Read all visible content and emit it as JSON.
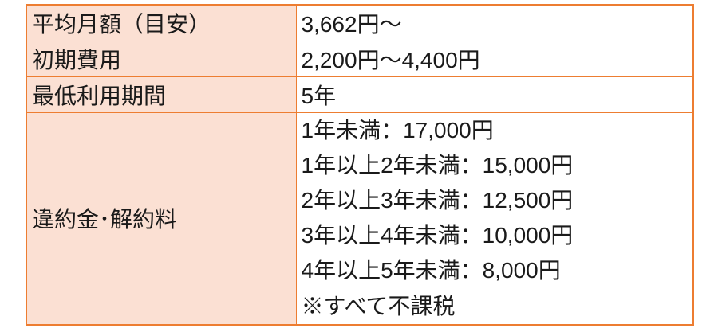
{
  "colors": {
    "border": "#ed7d31",
    "label_bg": "#fbe0d3",
    "text": "#1a1a1a"
  },
  "table": {
    "rows": [
      {
        "label": "平均月額（目安）",
        "value": "3,662円～"
      },
      {
        "label": "初期費用",
        "value": "2,200円～4,400円"
      },
      {
        "label": "最低利用期間",
        "value": "5年"
      },
      {
        "label": "違約金･解約料",
        "lines": [
          "1年未満：17,000円",
          "1年以上2年未満：15,000円",
          "2年以上3年未満：12,500円",
          "3年以上4年未満：10,000円",
          "4年以上5年未満：8,000円",
          "※すべて不課税"
        ]
      }
    ]
  }
}
